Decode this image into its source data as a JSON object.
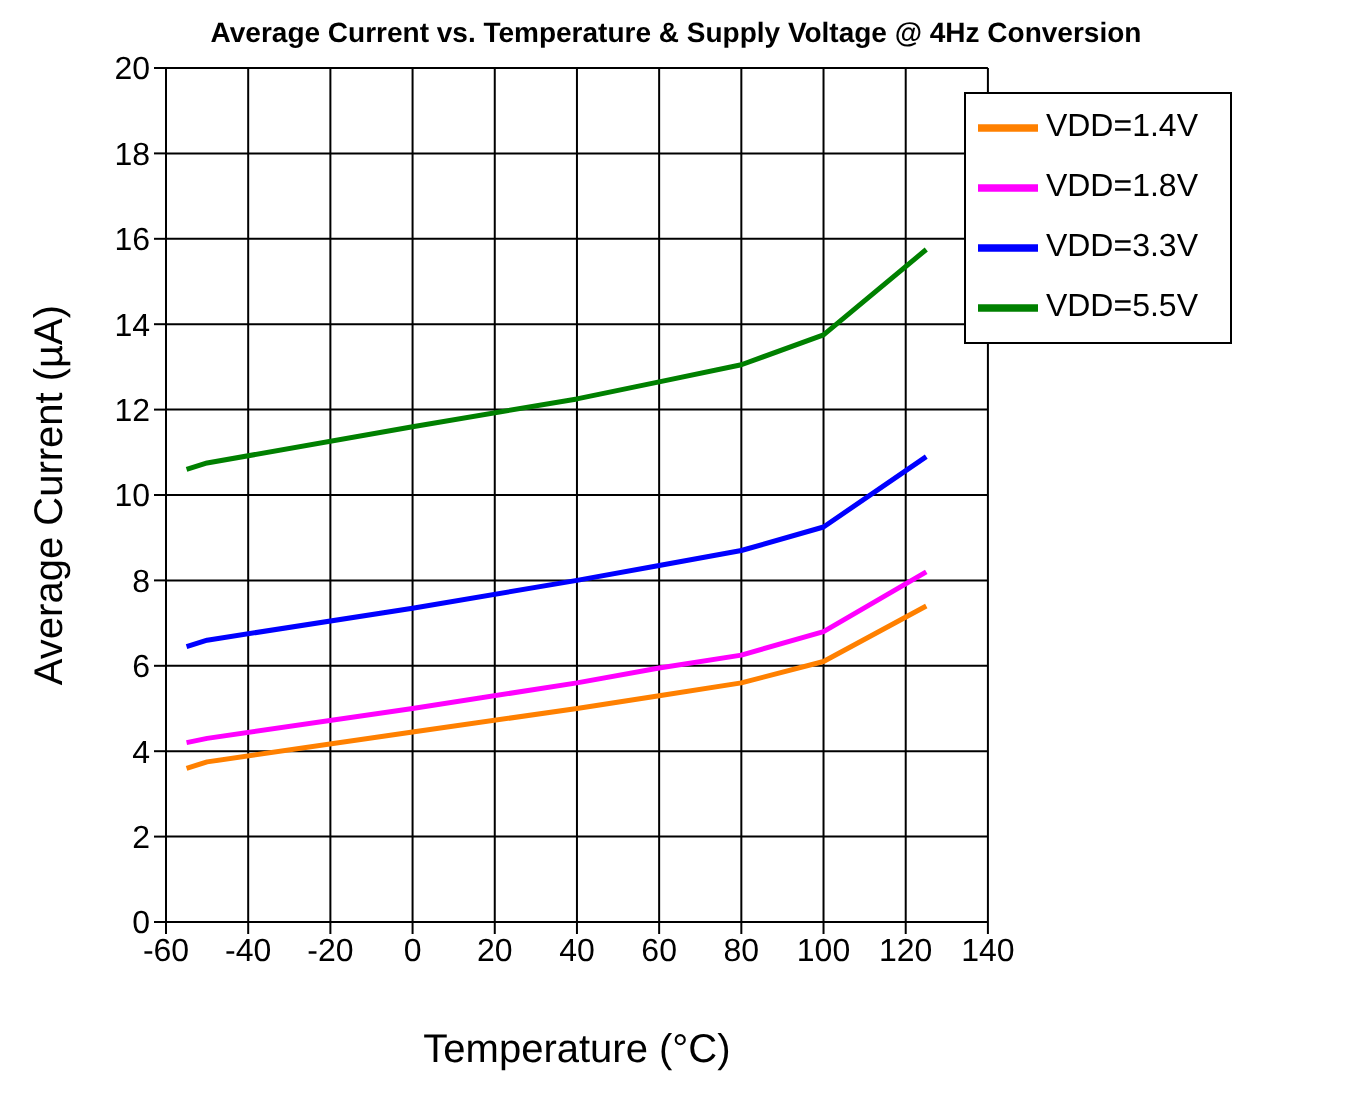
{
  "chart_data": {
    "type": "line",
    "title": "Average Current vs. Temperature & Supply Voltage @ 4Hz Conversion",
    "xlabel": "Temperature (°C)",
    "ylabel": "Average Current (µA)",
    "x": [
      -55,
      -50,
      0,
      40,
      60,
      80,
      100,
      125
    ],
    "series": [
      {
        "name": "VDD=1.4V",
        "color": "#ff8000",
        "values": [
          3.6,
          3.75,
          4.45,
          5.0,
          5.3,
          5.6,
          6.1,
          7.4
        ]
      },
      {
        "name": "VDD=1.8V",
        "color": "#ff00ff",
        "values": [
          4.2,
          4.3,
          5.0,
          5.6,
          5.95,
          6.25,
          6.8,
          8.2
        ]
      },
      {
        "name": "VDD=3.3V",
        "color": "#0000ff",
        "values": [
          6.45,
          6.6,
          7.35,
          8.0,
          8.35,
          8.7,
          9.25,
          10.9
        ]
      },
      {
        "name": "VDD=5.5V",
        "color": "#008000",
        "values": [
          10.6,
          10.75,
          11.6,
          12.25,
          12.65,
          13.05,
          13.75,
          15.75
        ]
      }
    ],
    "xlim": [
      -60,
      140
    ],
    "xticks": [
      -60,
      -40,
      -20,
      0,
      20,
      40,
      60,
      80,
      100,
      120,
      140
    ],
    "ylim": [
      0,
      20
    ],
    "yticks": [
      0,
      2,
      4,
      6,
      8,
      10,
      12,
      14,
      16,
      18,
      20
    ],
    "grid": true,
    "legend": "top right",
    "marker": "none",
    "line_style": "solid"
  }
}
